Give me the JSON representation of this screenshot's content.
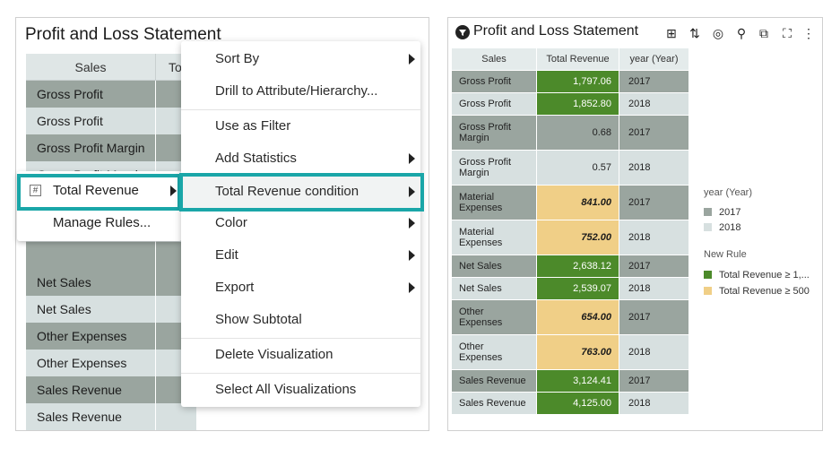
{
  "left": {
    "title": "Profit and Loss Statement",
    "col_sales": "Sales",
    "col_total": "To",
    "rows": [
      {
        "label": "Gross Profit",
        "shade": "dark"
      },
      {
        "label": "Gross Profit",
        "shade": "light"
      },
      {
        "label": "Gross Profit Margin",
        "shade": "dark"
      },
      {
        "label": "Gross Profit Margin",
        "shade": "light"
      },
      {
        "label": "",
        "shade": "dark"
      },
      {
        "label": "",
        "shade": "light"
      },
      {
        "label": "",
        "shade": "dark"
      },
      {
        "label": "Net Sales",
        "shade": "dark"
      },
      {
        "label": "Net Sales",
        "shade": "light"
      },
      {
        "label": "Other Expenses",
        "shade": "dark"
      },
      {
        "label": "Other Expenses",
        "shade": "light"
      },
      {
        "label": "Sales Revenue",
        "shade": "dark"
      },
      {
        "label": "Sales Revenue",
        "shade": "light"
      }
    ]
  },
  "submenu": {
    "total_revenue": "Total Revenue",
    "manage_rules": "Manage Rules..."
  },
  "menu": {
    "sort_by": "Sort By",
    "drill": "Drill to Attribute/Hierarchy...",
    "use_as_filter": "Use as Filter",
    "add_statistics": "Add Statistics",
    "condition": "Total Revenue condition",
    "color": "Color",
    "edit": "Edit",
    "export": "Export",
    "show_subtotal": "Show Subtotal",
    "delete_viz": "Delete Visualization",
    "select_all": "Select All Visualizations"
  },
  "right": {
    "title": "Profit and Loss Statement",
    "headers": [
      "Sales",
      "Total Revenue",
      "year (Year)"
    ],
    "rows": [
      {
        "sales": "Gross Profit",
        "rev": "1,797.06",
        "year": "2017",
        "fmt": "green"
      },
      {
        "sales": "Gross Profit",
        "rev": "1,852.80",
        "year": "2018",
        "fmt": "green"
      },
      {
        "sales": "Gross Profit Margin",
        "rev": "0.68",
        "year": "2017",
        "fmt": "none"
      },
      {
        "sales": "Gross Profit Margin",
        "rev": "0.57",
        "year": "2018",
        "fmt": "none"
      },
      {
        "sales": "Material Expenses",
        "rev": "841.00",
        "year": "2017",
        "fmt": "tan"
      },
      {
        "sales": "Material Expenses",
        "rev": "752.00",
        "year": "2018",
        "fmt": "tan"
      },
      {
        "sales": "Net Sales",
        "rev": "2,638.12",
        "year": "2017",
        "fmt": "green"
      },
      {
        "sales": "Net Sales",
        "rev": "2,539.07",
        "year": "2018",
        "fmt": "green"
      },
      {
        "sales": "Other Expenses",
        "rev": "654.00",
        "year": "2017",
        "fmt": "tan"
      },
      {
        "sales": "Other Expenses",
        "rev": "763.00",
        "year": "2018",
        "fmt": "tan"
      },
      {
        "sales": "Sales Revenue",
        "rev": "3,124.41",
        "year": "2017",
        "fmt": "green"
      },
      {
        "sales": "Sales Revenue",
        "rev": "4,125.00",
        "year": "2018",
        "fmt": "green"
      }
    ],
    "legend": {
      "year_title": "year (Year)",
      "year_2017": "2017",
      "year_2018": "2018",
      "rule_title": "New Rule",
      "rule_1": "Total Revenue ≥ 1,...",
      "rule_2": "Total Revenue ≥ 500"
    }
  },
  "colors": {
    "accent": "#1aa6a8",
    "dark_row": "#9aa59f",
    "light_row": "#d7e0e0",
    "green": "#4c8a2a",
    "tan": "#f0cf87"
  }
}
